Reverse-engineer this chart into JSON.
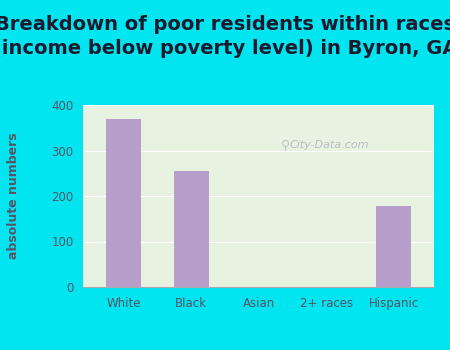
{
  "title": "Breakdown of poor residents within races\n(income below poverty level) in Byron, GA",
  "categories": [
    "White",
    "Black",
    "Asian",
    "2+ races",
    "Hispanic"
  ],
  "values": [
    370,
    255,
    0,
    0,
    178
  ],
  "bar_color": "#b89eca",
  "ylabel": "absolute numbers",
  "ylim": [
    0,
    400
  ],
  "yticks": [
    0,
    100,
    200,
    300,
    400
  ],
  "bg_outer": "#00e5f0",
  "bg_plot": "#e8f2e0",
  "title_fontsize": 14,
  "title_color": "#1a1a2e",
  "axis_label_fontsize": 9,
  "tick_fontsize": 8.5,
  "tick_color": "#555566",
  "watermark": "City-Data.com",
  "grid_color": "#ffffff"
}
